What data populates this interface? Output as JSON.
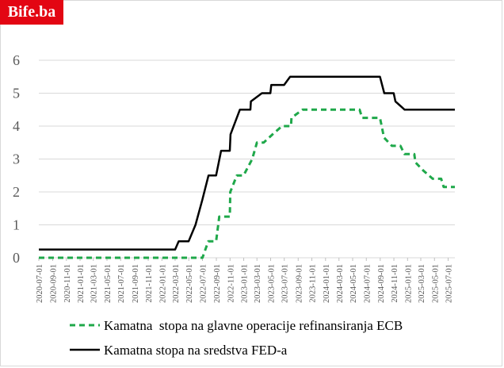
{
  "brand": {
    "logo_text": "Bife.ba"
  },
  "chart_data": {
    "type": "line",
    "ylim": [
      0,
      6
    ],
    "yticks": [
      "0",
      "1",
      "2",
      "3",
      "4",
      "5",
      "6"
    ],
    "grid": true,
    "legend_position": "bottom",
    "x_labels": [
      "2020-07-01",
      "2020-09-01",
      "2020-11-01",
      "2021-01-01",
      "2021-03-01",
      "2021-05-01",
      "2021-07-01",
      "2021-09-01",
      "2021-11-01",
      "2022-01-01",
      "2022-03-01",
      "2022-05-01",
      "2022-07-01",
      "2022-09-01",
      "2022-11-01",
      "2023-01-01",
      "2023-03-01",
      "2023-05-01",
      "2023-07-01",
      "2023-09-01",
      "2023-11-01",
      "2024-01-01",
      "2024-03-01",
      "2024-05-01",
      "2024-07-01",
      "2024-09-01",
      "2024-11-01",
      "2025-01-01",
      "2025-03-01",
      "2025-05-01",
      "2025-07-01"
    ],
    "series": [
      {
        "name": "Kamatna  stopa na glavne operacije refinansiranja ECB",
        "color": "#1fa84a",
        "style": "dashed",
        "points": [
          [
            "2020-07-01",
            0
          ],
          [
            "2022-07-01",
            0
          ],
          [
            "2022-07-27",
            0.5
          ],
          [
            "2022-08-31",
            0.5
          ],
          [
            "2022-09-14",
            1.25
          ],
          [
            "2022-10-31",
            1.25
          ],
          [
            "2022-11-02",
            2.0
          ],
          [
            "2022-12-01",
            2.5
          ],
          [
            "2022-12-31",
            2.5
          ],
          [
            "2023-02-08",
            3.0
          ],
          [
            "2023-03-01",
            3.5
          ],
          [
            "2023-03-31",
            3.5
          ],
          [
            "2023-05-10",
            3.75
          ],
          [
            "2023-06-21",
            4.0
          ],
          [
            "2023-07-31",
            4.0
          ],
          [
            "2023-08-02",
            4.25
          ],
          [
            "2023-09-20",
            4.5
          ],
          [
            "2024-06-01",
            4.5
          ],
          [
            "2024-06-12",
            4.25
          ],
          [
            "2024-08-31",
            4.25
          ],
          [
            "2024-09-18",
            3.65
          ],
          [
            "2024-10-23",
            3.4
          ],
          [
            "2024-11-30",
            3.4
          ],
          [
            "2024-12-18",
            3.15
          ],
          [
            "2025-01-31",
            3.15
          ],
          [
            "2025-02-05",
            2.9
          ],
          [
            "2025-03-12",
            2.65
          ],
          [
            "2025-04-23",
            2.4
          ],
          [
            "2025-05-31",
            2.4
          ],
          [
            "2025-06-11",
            2.15
          ],
          [
            "2025-07-31",
            2.15
          ]
        ]
      },
      {
        "name": "Kamatna stopa na sredstva FED-a",
        "color": "#000000",
        "style": "solid",
        "points": [
          [
            "2020-07-01",
            0.25
          ],
          [
            "2022-03-01",
            0.25
          ],
          [
            "2022-03-17",
            0.5
          ],
          [
            "2022-04-30",
            0.5
          ],
          [
            "2022-05-31",
            1.0
          ],
          [
            "2022-06-30",
            1.75
          ],
          [
            "2022-07-28",
            2.5
          ],
          [
            "2022-08-31",
            2.5
          ],
          [
            "2022-09-22",
            3.25
          ],
          [
            "2022-10-31",
            3.25
          ],
          [
            "2022-11-03",
            3.75
          ],
          [
            "2022-12-01",
            4.25
          ],
          [
            "2022-12-15",
            4.5
          ],
          [
            "2023-01-31",
            4.5
          ],
          [
            "2023-02-02",
            4.75
          ],
          [
            "2023-03-23",
            5.0
          ],
          [
            "2023-04-30",
            5.0
          ],
          [
            "2023-05-04",
            5.25
          ],
          [
            "2023-06-30",
            5.25
          ],
          [
            "2023-07-27",
            5.5
          ],
          [
            "2024-08-31",
            5.5
          ],
          [
            "2024-09-19",
            5.0
          ],
          [
            "2024-10-31",
            5.0
          ],
          [
            "2024-11-08",
            4.75
          ],
          [
            "2024-12-19",
            4.5
          ],
          [
            "2025-07-31",
            4.5
          ]
        ]
      }
    ]
  }
}
